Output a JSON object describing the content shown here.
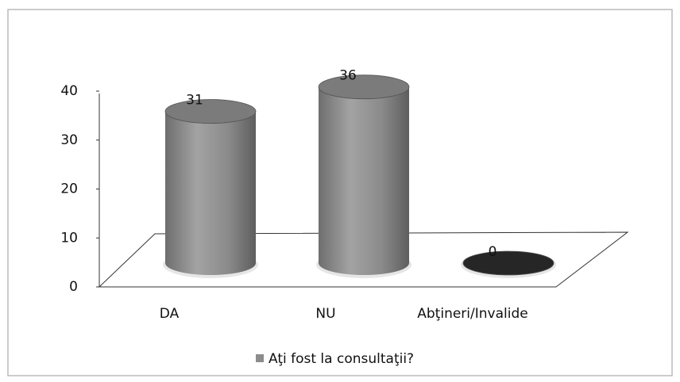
{
  "chart_data": {
    "type": "bar",
    "categories": [
      "DA",
      "NU",
      "Abţineri/Invalide"
    ],
    "series": [
      {
        "name": "Aţi fost la consultaţii?",
        "color": "#8c8c8c",
        "values": [
          31,
          36,
          0
        ]
      }
    ],
    "ylim": [
      0,
      40
    ],
    "yticks": [
      0,
      10,
      20,
      30,
      40
    ]
  }
}
